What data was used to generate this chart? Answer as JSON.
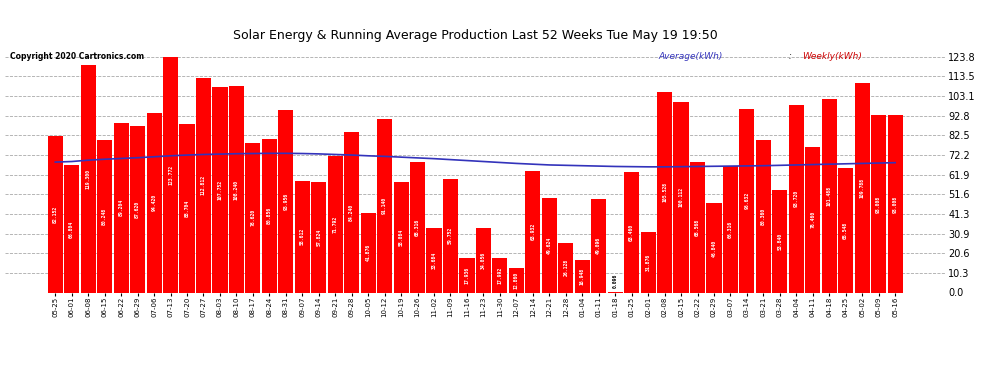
{
  "title": "Solar Energy & Running Average Production Last 52 Weeks Tue May 19 19:50",
  "copyright": "Copyright 2020 Cartronics.com",
  "legend_avg": "Average(kWh)",
  "legend_weekly": "Weekly(kWh)",
  "bar_color": "#ff0000",
  "avg_line_color": "#3333bb",
  "weekly_label_color": "#cc0000",
  "background_color": "#ffffff",
  "grid_color": "#aaaaaa",
  "yticks": [
    0.0,
    10.3,
    20.6,
    30.9,
    41.3,
    51.6,
    61.9,
    72.2,
    82.5,
    92.8,
    103.1,
    113.5,
    123.8
  ],
  "dates": [
    "05-25",
    "06-01",
    "06-08",
    "06-15",
    "06-22",
    "06-29",
    "07-06",
    "07-13",
    "07-20",
    "07-27",
    "08-03",
    "08-10",
    "08-17",
    "08-24",
    "08-31",
    "09-07",
    "09-14",
    "09-21",
    "09-28",
    "10-05",
    "10-12",
    "10-19",
    "10-26",
    "11-02",
    "11-09",
    "11-16",
    "11-23",
    "11-30",
    "12-07",
    "12-14",
    "12-21",
    "12-28",
    "01-04",
    "01-11",
    "01-18",
    "01-25",
    "02-01",
    "02-08",
    "02-15",
    "02-22",
    "02-29",
    "03-07",
    "03-14",
    "03-21",
    "03-28",
    "04-04",
    "04-11",
    "04-18",
    "04-25",
    "05-02",
    "05-09",
    "05-16"
  ],
  "weekly": [
    82.152,
    66.804,
    119.3,
    80.248,
    89.204,
    87.62,
    94.42,
    123.772,
    88.704,
    112.812,
    107.752,
    108.24,
    78.62,
    80.856,
    95.956,
    58.612,
    57.824,
    71.792,
    84.24,
    41.876,
    91.14,
    58.084,
    68.316,
    33.684,
    59.752,
    17.936,
    34.056,
    17.992,
    12.86,
    63.932,
    49.624,
    26.128,
    16.948,
    49.096,
    0.096,
    63.46,
    31.876,
    105.528,
    100.112,
    68.568,
    46.84,
    66.316,
    96.632,
    80.36,
    53.84,
    98.72,
    76.46,
    101.488,
    65.548,
    109.788,
    93.008,
    93.008
  ],
  "average": [
    68.5,
    68.8,
    69.5,
    70.0,
    70.4,
    70.8,
    71.3,
    71.8,
    72.2,
    72.5,
    72.7,
    72.9,
    73.0,
    73.1,
    73.1,
    73.0,
    72.8,
    72.5,
    72.2,
    71.8,
    71.5,
    71.1,
    70.7,
    70.3,
    69.8,
    69.3,
    68.8,
    68.3,
    67.8,
    67.4,
    67.0,
    66.8,
    66.6,
    66.4,
    66.2,
    66.1,
    66.0,
    66.0,
    66.1,
    66.2,
    66.3,
    66.4,
    66.5,
    66.6,
    66.8,
    67.0,
    67.2,
    67.4,
    67.6,
    67.8,
    68.0,
    68.2
  ]
}
